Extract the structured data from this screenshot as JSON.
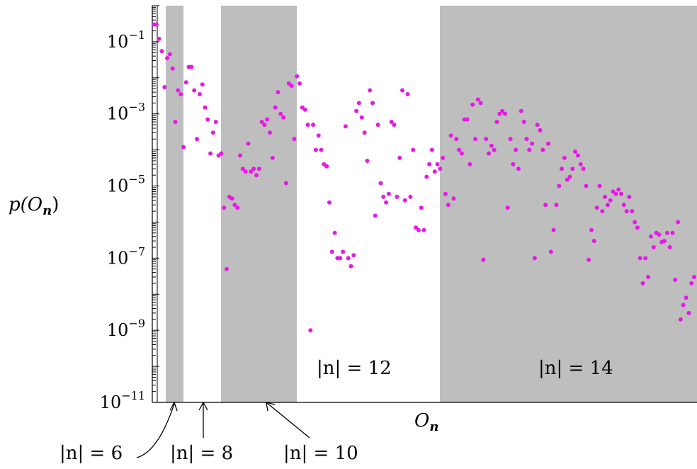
{
  "chart_data": {
    "type": "scatter",
    "title": "",
    "xlabel": "O_n",
    "ylabel": "p(O_n)",
    "yscale": "log",
    "ylim": [
      1e-11,
      1
    ],
    "y_ticks": [
      {
        "value": 0.1,
        "base": "10",
        "exp": "−1"
      },
      {
        "value": 0.001,
        "base": "10",
        "exp": "−3"
      },
      {
        "value": 1e-05,
        "base": "10",
        "exp": "−5"
      },
      {
        "value": 1e-07,
        "base": "10",
        "exp": "−7"
      },
      {
        "value": 1e-09,
        "base": "10",
        "exp": "−9"
      },
      {
        "value": 1e-11,
        "base": "10",
        "exp": "−11"
      }
    ],
    "grid": false,
    "bands": [
      {
        "n": "6",
        "shaded": true
      },
      {
        "n": "8",
        "shaded": false
      },
      {
        "n": "10",
        "shaded": true
      },
      {
        "n": "12",
        "shaded": false
      },
      {
        "n": "14",
        "shaded": true
      }
    ],
    "band_label_text": [
      "|n| = 12",
      "|n| = 14"
    ],
    "arrow_labels": [
      "|n| = 6",
      "|n| = 8",
      "|n| = 10"
    ],
    "point_color": "#e619e6",
    "band_color": "#bebebe",
    "series": [
      {
        "values": [
          {
            "x": 0,
            "y": 0.3
          },
          {
            "x": 1,
            "y": 0.3
          },
          {
            "x": 2,
            "y": 0.12
          },
          {
            "x": 3,
            "y": 0.055
          },
          {
            "x": 4,
            "y": 0.0055
          },
          {
            "x": 5,
            "y": 0.035
          },
          {
            "x": 6,
            "y": 0.045
          },
          {
            "x": 7,
            "y": 0.018
          },
          {
            "x": 8,
            "y": 0.0006
          },
          {
            "x": 9,
            "y": 0.0045
          },
          {
            "x": 10,
            "y": 0.0035
          },
          {
            "x": 11,
            "y": 0.00012
          },
          {
            "x": 12,
            "y": 0.0075
          },
          {
            "x": 13,
            "y": 0.02
          },
          {
            "x": 14,
            "y": 0.02
          },
          {
            "x": 15,
            "y": 0.0045
          },
          {
            "x": 16,
            "y": 0.0002
          },
          {
            "x": 17,
            "y": 0.0035
          },
          {
            "x": 18,
            "y": 0.0065
          },
          {
            "x": 19,
            "y": 0.0015
          },
          {
            "x": 20,
            "y": 0.0007
          },
          {
            "x": 21,
            "y": 8e-05
          },
          {
            "x": 22,
            "y": 0.0003
          },
          {
            "x": 23,
            "y": 0.0006
          },
          {
            "x": 24,
            "y": 7e-05
          },
          {
            "x": 25,
            "y": 8e-05
          },
          {
            "x": 26,
            "y": 2.5e-06
          },
          {
            "x": 27,
            "y": 5e-08
          },
          {
            "x": 28,
            "y": 5e-06
          },
          {
            "x": 29,
            "y": 4.5e-06
          },
          {
            "x": 30,
            "y": 3e-06
          },
          {
            "x": 31,
            "y": 2.5e-06
          },
          {
            "x": 32,
            "y": 7e-05
          },
          {
            "x": 33,
            "y": 3e-05
          },
          {
            "x": 34,
            "y": 2.5e-05
          },
          {
            "x": 35,
            "y": 0.00015
          },
          {
            "x": 36,
            "y": 2.5e-05
          },
          {
            "x": 37,
            "y": 3e-05
          },
          {
            "x": 38,
            "y": 2e-05
          },
          {
            "x": 39,
            "y": 3e-05
          },
          {
            "x": 40,
            "y": 0.0006
          },
          {
            "x": 41,
            "y": 0.0005
          },
          {
            "x": 42,
            "y": 0.0007
          },
          {
            "x": 43,
            "y": 0.0003
          },
          {
            "x": 44,
            "y": 6e-05
          },
          {
            "x": 45,
            "y": 0.0015
          },
          {
            "x": 46,
            "y": 0.004
          },
          {
            "x": 47,
            "y": 0.001
          },
          {
            "x": 48,
            "y": 0.0008
          },
          {
            "x": 49,
            "y": 1.2e-05
          },
          {
            "x": 50,
            "y": 0.007
          },
          {
            "x": 51,
            "y": 0.006
          },
          {
            "x": 52,
            "y": 0.0002
          },
          {
            "x": 53,
            "y": 0.011
          },
          {
            "x": 54,
            "y": 0.007
          },
          {
            "x": 55,
            "y": 0.0015
          },
          {
            "x": 56,
            "y": 0.0013
          },
          {
            "x": 57,
            "y": 0.0005
          },
          {
            "x": 58,
            "y": 1e-09
          },
          {
            "x": 59,
            "y": 0.0005
          },
          {
            "x": 60,
            "y": 0.0001
          },
          {
            "x": 61,
            "y": 0.00025
          },
          {
            "x": 62,
            "y": 0.0001
          },
          {
            "x": 63,
            "y": 4e-05
          },
          {
            "x": 64,
            "y": 3.5e-05
          },
          {
            "x": 65,
            "y": 3.5e-06
          },
          {
            "x": 66,
            "y": 1.5e-07
          },
          {
            "x": 67,
            "y": 5e-07
          },
          {
            "x": 68,
            "y": 1e-07
          },
          {
            "x": 69,
            "y": 1e-07
          },
          {
            "x": 70,
            "y": 1.5e-07
          },
          {
            "x": 71,
            "y": 0.00045
          },
          {
            "x": 72,
            "y": 1e-07
          },
          {
            "x": 73,
            "y": 6e-08
          },
          {
            "x": 74,
            "y": 1.2e-07
          },
          {
            "x": 75,
            "y": 0.0012
          },
          {
            "x": 76,
            "y": 0.002
          },
          {
            "x": 77,
            "y": 0.0008
          },
          {
            "x": 78,
            "y": 0.0003
          },
          {
            "x": 79,
            "y": 5e-05
          },
          {
            "x": 80,
            "y": 0.0045
          },
          {
            "x": 81,
            "y": 0.002
          },
          {
            "x": 82,
            "y": 1.5e-06
          },
          {
            "x": 83,
            "y": 0.0005
          },
          {
            "x": 84,
            "y": 1.2e-05
          },
          {
            "x": 85,
            "y": 5e-06
          },
          {
            "x": 86,
            "y": 3.5e-06
          },
          {
            "x": 87,
            "y": 6e-06
          },
          {
            "x": 88,
            "y": 0.0006
          },
          {
            "x": 89,
            "y": 0.0005
          },
          {
            "x": 90,
            "y": 5e-06
          },
          {
            "x": 91,
            "y": 6e-05
          },
          {
            "x": 92,
            "y": 0.0045
          },
          {
            "x": 93,
            "y": 4e-06
          },
          {
            "x": 94,
            "y": 0.0035
          },
          {
            "x": 95,
            "y": 5e-06
          },
          {
            "x": 96,
            "y": 0.0001
          },
          {
            "x": 97,
            "y": 7e-07
          },
          {
            "x": 98,
            "y": 6e-07
          },
          {
            "x": 99,
            "y": 2.5e-06
          },
          {
            "x": 100,
            "y": 6e-07
          },
          {
            "x": 101,
            "y": 1.8e-05
          },
          {
            "x": 102,
            "y": 4e-05
          },
          {
            "x": 103,
            "y": 0.0001
          },
          {
            "x": 104,
            "y": 2.5e-05
          },
          {
            "x": 105,
            "y": 4e-05
          },
          {
            "x": 106,
            "y": 3e-05
          },
          {
            "x": 107,
            "y": 6e-05
          },
          {
            "x": 108,
            "y": 6e-06
          },
          {
            "x": 109,
            "y": 3e-06
          },
          {
            "x": 110,
            "y": 0.00025
          },
          {
            "x": 111,
            "y": 4.5e-06
          },
          {
            "x": 112,
            "y": 0.0002
          },
          {
            "x": 113,
            "y": 0.0001
          },
          {
            "x": 114,
            "y": 8e-05
          },
          {
            "x": 115,
            "y": 0.0007
          },
          {
            "x": 116,
            "y": 0.0007
          },
          {
            "x": 117,
            "y": 4e-05
          },
          {
            "x": 118,
            "y": 0.0018
          },
          {
            "x": 119,
            "y": 0.0002
          },
          {
            "x": 120,
            "y": 0.0025
          },
          {
            "x": 121,
            "y": 0.002
          },
          {
            "x": 122,
            "y": 9e-08
          },
          {
            "x": 123,
            "y": 0.0002
          },
          {
            "x": 124,
            "y": 8e-05
          },
          {
            "x": 125,
            "y": 0.00013
          },
          {
            "x": 126,
            "y": 0.0001
          },
          {
            "x": 127,
            "y": 0.0006
          },
          {
            "x": 128,
            "y": 0.001
          },
          {
            "x": 129,
            "y": 0.0012
          },
          {
            "x": 130,
            "y": 0.001
          },
          {
            "x": 131,
            "y": 2.5e-06
          },
          {
            "x": 132,
            "y": 0.0002
          },
          {
            "x": 133,
            "y": 4e-05
          },
          {
            "x": 134,
            "y": 0.0001
          },
          {
            "x": 135,
            "y": 3e-05
          },
          {
            "x": 136,
            "y": 0.0012
          },
          {
            "x": 137,
            "y": 0.0006
          },
          {
            "x": 138,
            "y": 0.0002
          },
          {
            "x": 139,
            "y": 0.0001
          },
          {
            "x": 140,
            "y": 0.00015
          },
          {
            "x": 141,
            "y": 1e-07
          },
          {
            "x": 142,
            "y": 0.0005
          },
          {
            "x": 143,
            "y": 0.00035
          },
          {
            "x": 144,
            "y": 0.0001
          },
          {
            "x": 145,
            "y": 3e-06
          },
          {
            "x": 146,
            "y": 0.00015
          },
          {
            "x": 147,
            "y": 1.5e-07
          },
          {
            "x": 148,
            "y": 6e-07
          },
          {
            "x": 149,
            "y": 3e-06
          },
          {
            "x": 150,
            "y": 1e-05
          },
          {
            "x": 151,
            "y": 3e-05
          },
          {
            "x": 152,
            "y": 6e-05
          },
          {
            "x": 153,
            "y": 1.5e-05
          },
          {
            "x": 154,
            "y": 1.8e-05
          },
          {
            "x": 155,
            "y": 3e-05
          },
          {
            "x": 156,
            "y": 9e-05
          },
          {
            "x": 157,
            "y": 7e-05
          },
          {
            "x": 158,
            "y": 4e-05
          },
          {
            "x": 159,
            "y": 3e-05
          },
          {
            "x": 160,
            "y": 1e-05
          },
          {
            "x": 161,
            "y": 9e-08
          },
          {
            "x": 162,
            "y": 6e-07
          },
          {
            "x": 163,
            "y": 3e-07
          },
          {
            "x": 164,
            "y": 2.5e-06
          },
          {
            "x": 165,
            "y": 1e-05
          },
          {
            "x": 166,
            "y": 2e-06
          },
          {
            "x": 167,
            "y": 5e-06
          },
          {
            "x": 168,
            "y": 3e-06
          },
          {
            "x": 169,
            "y": 4e-06
          },
          {
            "x": 170,
            "y": 7e-06
          },
          {
            "x": 171,
            "y": 6e-06
          },
          {
            "x": 172,
            "y": 8e-06
          },
          {
            "x": 173,
            "y": 6e-06
          },
          {
            "x": 174,
            "y": 3e-06
          },
          {
            "x": 175,
            "y": 2e-06
          },
          {
            "x": 176,
            "y": 5e-06
          },
          {
            "x": 177,
            "y": 2e-06
          },
          {
            "x": 178,
            "y": 1e-06
          },
          {
            "x": 179,
            "y": 7e-07
          },
          {
            "x": 180,
            "y": 1e-07
          },
          {
            "x": 181,
            "y": 2e-08
          },
          {
            "x": 182,
            "y": 1e-07
          },
          {
            "x": 183,
            "y": 3e-08
          },
          {
            "x": 184,
            "y": 4e-07
          },
          {
            "x": 185,
            "y": 2e-07
          },
          {
            "x": 186,
            "y": 5e-07
          },
          {
            "x": 187,
            "y": 4.5e-07
          },
          {
            "x": 188,
            "y": 2.8e-07
          },
          {
            "x": 189,
            "y": 3e-07
          },
          {
            "x": 190,
            "y": 5e-07
          },
          {
            "x": 191,
            "y": 2e-07
          },
          {
            "x": 192,
            "y": 5e-07
          },
          {
            "x": 193,
            "y": 2.5e-08
          },
          {
            "x": 194,
            "y": 1e-06
          },
          {
            "x": 195,
            "y": 2e-09
          },
          {
            "x": 196,
            "y": 5e-09
          },
          {
            "x": 197,
            "y": 8e-09
          },
          {
            "x": 198,
            "y": 3e-09
          },
          {
            "x": 199,
            "y": 2e-08
          },
          {
            "x": 200,
            "y": 3e-08
          }
        ]
      }
    ]
  }
}
